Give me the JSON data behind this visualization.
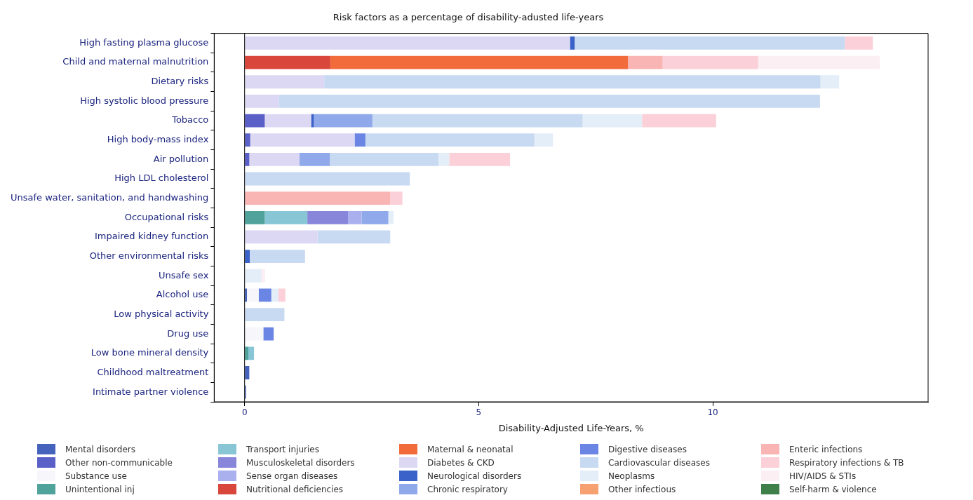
{
  "chart_data": {
    "type": "bar",
    "orientation": "horizontal",
    "stacked": true,
    "title": "Risk factors as a percentage of disability-adusted life-years",
    "xlabel": "Disability-Adjusted Life-Years, %",
    "xlim": [
      -0.65,
      14.6
    ],
    "xticks": [
      0,
      5,
      10
    ],
    "legend": "bottom",
    "grid": false,
    "ref_lines": [
      {
        "axis": "x",
        "value": 0,
        "color": "#000000"
      }
    ],
    "categories": [
      "High fasting plasma glucose",
      "Child and maternal malnutrition",
      "Dietary risks",
      "High systolic blood pressure",
      "Tobacco",
      "High body-mass index",
      "Air pollution",
      "High LDL cholesterol",
      "Unsafe water, sanitation, and handwashing",
      "Occupational risks",
      "Impaired kidney function",
      "Other environmental risks",
      "Unsafe sex",
      "Alcohol use",
      "Low physical activity",
      "Drug use",
      "Low bone mineral density",
      "Childhood maltreatment",
      "Intimate partner violence"
    ],
    "series": [
      {
        "name": "Mental disorders",
        "color": "#4563bd",
        "values": [
          null,
          null,
          null,
          null,
          null,
          null,
          null,
          null,
          null,
          null,
          null,
          null,
          null,
          0.05,
          null,
          null,
          null,
          0.1,
          0.03
        ]
      },
      {
        "name": "Other non-communicable",
        "color": "#5b5fc8",
        "values": [
          null,
          null,
          null,
          null,
          0.43,
          0.12,
          0.1,
          null,
          null,
          null,
          null,
          null,
          null,
          null,
          null,
          null,
          null,
          null,
          null
        ]
      },
      {
        "name": "Substance use",
        "color": "#f6f6fb",
        "values": [
          null,
          null,
          null,
          null,
          null,
          null,
          null,
          null,
          null,
          null,
          null,
          null,
          null,
          0.25,
          null,
          0.4,
          null,
          null,
          null
        ]
      },
      {
        "name": "Unintentional inj",
        "color": "#4fa39a",
        "values": [
          null,
          null,
          null,
          null,
          null,
          null,
          null,
          null,
          null,
          0.43,
          null,
          null,
          null,
          null,
          null,
          null,
          0.08,
          null,
          null
        ]
      },
      {
        "name": "Transport injuries",
        "color": "#88c6d6",
        "values": [
          null,
          null,
          null,
          null,
          null,
          null,
          null,
          null,
          null,
          0.91,
          null,
          null,
          null,
          null,
          null,
          null,
          0.12,
          null,
          null
        ]
      },
      {
        "name": "Musculoskeletal disorders",
        "color": "#8886db",
        "values": [
          null,
          null,
          null,
          null,
          null,
          null,
          null,
          null,
          null,
          0.87,
          null,
          null,
          null,
          null,
          null,
          null,
          null,
          null,
          null
        ]
      },
      {
        "name": "Sense organ diseases",
        "color": "#aab0ee",
        "values": [
          null,
          null,
          null,
          null,
          null,
          null,
          null,
          null,
          null,
          0.29,
          null,
          null,
          null,
          null,
          null,
          null,
          null,
          null,
          null
        ]
      },
      {
        "name": "Nutritional deficiencies",
        "color": "#d9463b",
        "values": [
          null,
          1.83,
          null,
          null,
          null,
          null,
          null,
          null,
          null,
          null,
          null,
          null,
          null,
          null,
          null,
          null,
          null,
          null,
          null
        ]
      },
      {
        "name": "Maternal & neonatal",
        "color": "#f26b3a",
        "values": [
          null,
          6.36,
          null,
          null,
          null,
          null,
          null,
          null,
          null,
          null,
          null,
          null,
          null,
          null,
          null,
          null,
          null,
          null,
          null
        ]
      },
      {
        "name": "Diabetes & CKD",
        "color": "#dcd8f3",
        "values": [
          6.95,
          null,
          1.7,
          0.73,
          0.99,
          2.23,
          1.07,
          null,
          null,
          null,
          1.56,
          null,
          null,
          null,
          null,
          null,
          null,
          null,
          null
        ]
      },
      {
        "name": "Neurological disorders",
        "color": "#3a62c8",
        "values": [
          0.1,
          null,
          null,
          null,
          0.06,
          null,
          null,
          null,
          null,
          null,
          null,
          0.11,
          null,
          null,
          null,
          null,
          null,
          null,
          null
        ]
      },
      {
        "name": "Chronic respiratory",
        "color": "#8fa9ea",
        "values": [
          null,
          null,
          null,
          null,
          1.25,
          null,
          0.65,
          null,
          null,
          0.57,
          null,
          null,
          null,
          null,
          null,
          null,
          null,
          null,
          null
        ]
      },
      {
        "name": "Digestive diseases",
        "color": "#6a85e4",
        "values": [
          null,
          null,
          null,
          null,
          null,
          0.23,
          null,
          null,
          null,
          null,
          null,
          null,
          null,
          0.27,
          null,
          0.22,
          null,
          null,
          null
        ]
      },
      {
        "name": "Cardiovascular diseases",
        "color": "#c8d9f2",
        "values": [
          5.77,
          null,
          10.6,
          11.56,
          4.49,
          3.61,
          2.32,
          3.53,
          null,
          null,
          1.55,
          1.18,
          null,
          null,
          0.85,
          null,
          null,
          null,
          null
        ]
      },
      {
        "name": "Neoplasms",
        "color": "#e3eef8",
        "values": [
          null,
          null,
          0.4,
          null,
          1.27,
          0.4,
          0.23,
          null,
          null,
          0.11,
          null,
          null,
          0.36,
          0.15,
          null,
          null,
          null,
          null,
          null
        ]
      },
      {
        "name": "Other infectious",
        "color": "#f7a072",
        "values": [
          null,
          null,
          null,
          null,
          null,
          null,
          null,
          null,
          null,
          null,
          null,
          null,
          null,
          null,
          null,
          null,
          null,
          null,
          null
        ]
      },
      {
        "name": "Enteric infections",
        "color": "#f9b4b4",
        "values": [
          null,
          0.74,
          null,
          null,
          null,
          null,
          null,
          null,
          3.11,
          null,
          null,
          null,
          null,
          null,
          null,
          null,
          null,
          null,
          null
        ]
      },
      {
        "name": "Respiratory infections & TB",
        "color": "#fcd0d8",
        "values": [
          0.6,
          2.04,
          null,
          null,
          1.58,
          null,
          1.3,
          null,
          0.26,
          null,
          null,
          null,
          null,
          0.15,
          null,
          null,
          null,
          null,
          null
        ]
      },
      {
        "name": "HIV/AIDS & STIs",
        "color": "#fbeff3",
        "values": [
          null,
          2.6,
          null,
          null,
          null,
          null,
          null,
          null,
          null,
          null,
          null,
          null,
          0.08,
          null,
          null,
          null,
          null,
          null,
          null
        ]
      },
      {
        "name": "Self-harm & violence",
        "color": "#3f7f4a",
        "values": [
          null,
          null,
          null,
          null,
          null,
          null,
          null,
          null,
          null,
          null,
          null,
          null,
          null,
          null,
          null,
          null,
          null,
          null,
          null
        ]
      }
    ]
  }
}
